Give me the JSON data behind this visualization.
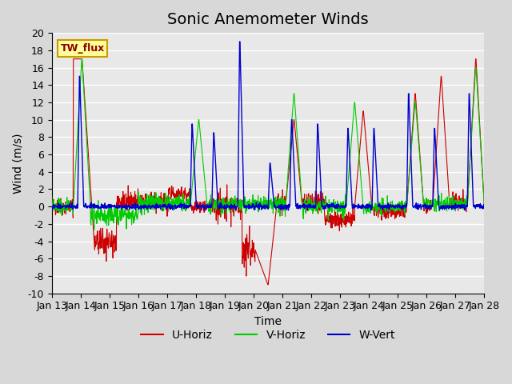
{
  "title": "Sonic Anemometer Winds",
  "xlabel": "Time",
  "ylabel": "Wind (m/s)",
  "ylim": [
    -10,
    20
  ],
  "yticks": [
    -10,
    -8,
    -6,
    -4,
    -2,
    0,
    2,
    4,
    6,
    8,
    10,
    12,
    14,
    16,
    18,
    20
  ],
  "xlim": [
    0,
    15
  ],
  "xtick_labels": [
    "Jan 13",
    "Jan 14",
    "Jan 15",
    "Jan 16",
    "Jan 17",
    "Jan 18",
    "Jan 19",
    "Jan 20",
    "Jan 21",
    "Jan 22",
    "Jan 23",
    "Jan 24",
    "Jan 25",
    "Jan 26",
    "Jan 27",
    "Jan 28"
  ],
  "bg_color": "#e8e8e8",
  "grid_color": "white",
  "u_color": "#cc0000",
  "v_color": "#00cc00",
  "w_color": "#0000cc",
  "legend_box_color": "#ffff99",
  "legend_box_edge": "#cc9900",
  "label_box_text": "TW_flux",
  "legend_entries": [
    "U-Horiz",
    "V-Horiz",
    "W-Vert"
  ],
  "title_fontsize": 14,
  "axis_fontsize": 10,
  "tick_fontsize": 9
}
